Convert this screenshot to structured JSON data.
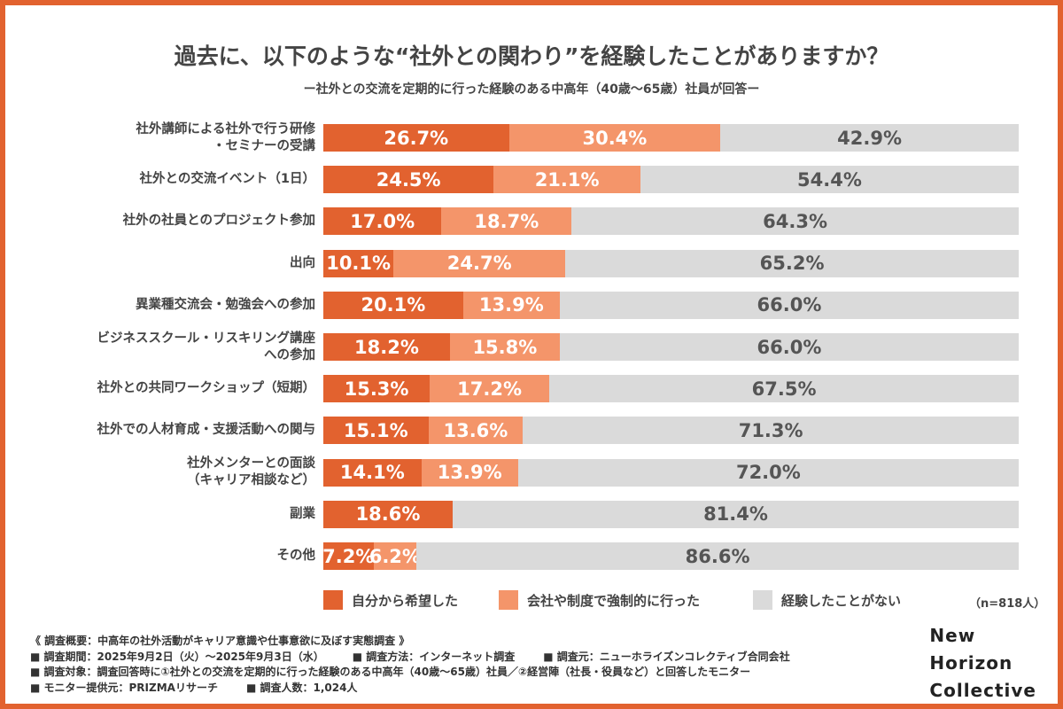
{
  "chart_data": {
    "type": "stacked-bar-horizontal",
    "title": "過去に、以下のような“社外との関わり”を経験したことがありますか？",
    "subtitle": "ー社外との交流を定期的に行った経験のある中高年（40歳〜65歳）社員が回答ー",
    "categories": [
      "社外講師による社外で行う研修\n・セミナーの受講",
      "社外との交流イベント（1日）",
      "社外の社員とのプロジェクト参加",
      "出向",
      "異業種交流会・勉強会への参加",
      "ビジネススクール・リスキリング講座\nへの参加",
      "社外との共同ワークショップ（短期）",
      "社外での人材育成・支援活動への関与",
      "社外メンターとの面談\n（キャリア相談など）",
      "副業",
      "その他"
    ],
    "xlim": [
      0,
      100
    ],
    "series": [
      {
        "name": "自分から希望した",
        "color": "#e2622f",
        "label_color": "#ffffff",
        "values": [
          26.7,
          24.5,
          17.0,
          10.1,
          20.1,
          18.2,
          15.3,
          15.1,
          14.1,
          18.6,
          7.2
        ],
        "value_labels": [
          "26.7%",
          "24.5%",
          "17.0%",
          "10.1%",
          "20.1%",
          "18.2%",
          "15.3%",
          "15.1%",
          "14.1%",
          "18.6%",
          "7.2%"
        ]
      },
      {
        "name": "会社や制度で強制的に行った",
        "color": "#f4956a",
        "label_color": "#ffffff",
        "values": [
          30.4,
          21.1,
          18.7,
          24.7,
          13.9,
          15.8,
          17.2,
          13.6,
          13.9,
          null,
          6.2
        ],
        "value_labels": [
          "30.4%",
          "21.1%",
          "18.7%",
          "24.7%",
          "13.9%",
          "15.8%",
          "17.2%",
          "13.6%",
          "13.9%",
          null,
          "6.2%"
        ]
      },
      {
        "name": "経験したことがない",
        "color": "#dadada",
        "label_color": "#555555",
        "values": [
          42.9,
          54.4,
          64.3,
          65.2,
          66.0,
          66.0,
          67.5,
          71.3,
          72.0,
          81.4,
          86.6
        ],
        "value_labels": [
          "42.9%",
          "54.4%",
          "64.3%",
          "65.2%",
          "66.0%",
          "66.0%",
          "67.5%",
          "71.3%",
          "72.0%",
          "81.4%",
          "86.6%"
        ]
      }
    ],
    "note": "（n=818人）"
  },
  "footer": [
    [
      "《 調査概要：中高年の社外活動がキャリア意識や仕事意欲に及ぼす実態調査 》"
    ],
    [
      "■ 調査期間：2025年9月2日（火）～2025年9月3日（水）",
      "■ 調査方法：インターネット調査",
      "■ 調査元：ニューホライズンコレクティブ合同会社"
    ],
    [
      "■ 調査対象：調査回答時に①社外との交流を定期的に行った経験のある中高年（40歳〜65歳）社員／②経営陣（社長・役員など）と回答したモニター"
    ],
    [
      "■ モニター提供元：PRIZMAリサーチ",
      "■ 調査人数：1,024人"
    ]
  ],
  "logo": [
    "New",
    "Horizon",
    "Collective"
  ]
}
